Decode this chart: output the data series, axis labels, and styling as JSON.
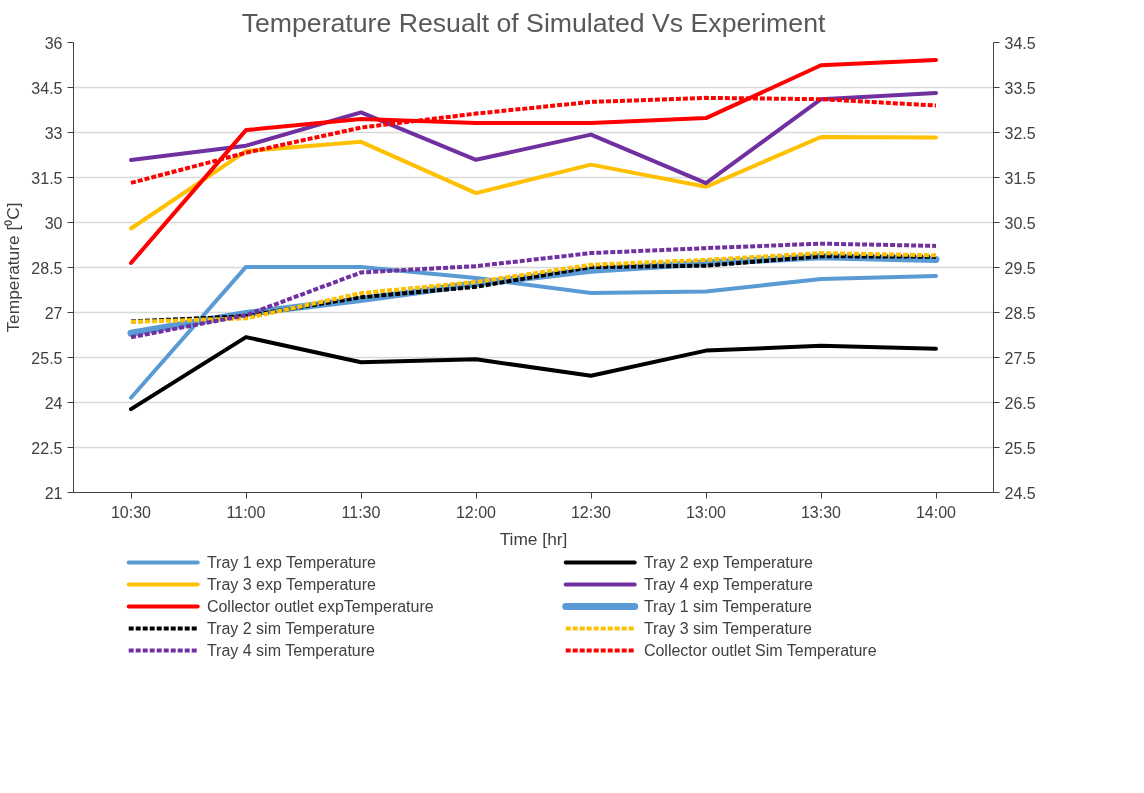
{
  "chart_data": {
    "type": "line",
    "title": "Temperature Resualt of Simulated Vs Experiment",
    "xlabel": "Time [hr]",
    "ylabel": "Temperature [⁰C]",
    "categories": [
      "10:30",
      "11:00",
      "11:30",
      "12:00",
      "12:30",
      "13:00",
      "13:30",
      "14:00"
    ],
    "ylim": [
      21,
      36
    ],
    "yticks": [
      21,
      22.5,
      24,
      25.5,
      27,
      28.5,
      30,
      31.5,
      33,
      34.5,
      36
    ],
    "y2lim": [
      24.5,
      34.5
    ],
    "y2ticks": [
      24.5,
      25.5,
      26.5,
      27.5,
      28.5,
      29.5,
      30.5,
      31.5,
      32.5,
      33.5,
      34.5
    ],
    "grid": "y",
    "legend": "bottom",
    "marker": "none",
    "series": [
      {
        "name": "Tray 1 exp Temperature",
        "color": "#5b9bd5",
        "line_style": "solid",
        "values": [
          24.16,
          28.52,
          28.52,
          28.15,
          27.65,
          27.7,
          28.12,
          28.22
        ]
      },
      {
        "name": "Tray 2 exp Temperature",
        "color": "#000000",
        "line_style": "solid",
        "values": [
          23.78,
          26.18,
          25.34,
          25.44,
          24.89,
          25.73,
          25.89,
          25.79
        ]
      },
      {
        "name": "Tray 3 exp Temperature",
        "color": "#ffc000",
        "line_style": "solid",
        "values": [
          29.8,
          32.38,
          32.69,
          30.98,
          31.93,
          31.19,
          32.85,
          32.83
        ]
      },
      {
        "name": "Tray 4 exp Temperature",
        "color": "#7030a0",
        "line_style": "solid",
        "values": [
          32.08,
          32.56,
          33.67,
          32.09,
          32.93,
          31.31,
          34.11,
          34.32
        ]
      },
      {
        "name": "Collector outlet expTemperature",
        "color": "#ff0000",
        "line_style": "solid",
        "values": [
          28.65,
          33.08,
          33.45,
          33.32,
          33.32,
          33.48,
          35.24,
          35.42
        ]
      },
      {
        "name": "Tray 1 sim Temperature",
        "color": "#5b9bd5",
        "line_style": "solid",
        "axis": "y2",
        "values": [
          28.04,
          28.48,
          28.79,
          29.14,
          29.44,
          29.6,
          29.74,
          29.68
        ]
      },
      {
        "name": "Tray 2 sim Temperature",
        "color": "#000000",
        "line_style": "dashed",
        "axis": "y2",
        "values": [
          28.3,
          28.42,
          28.84,
          29.07,
          29.51,
          29.54,
          29.75,
          29.74
        ]
      },
      {
        "name": "Tray 3 sim Temperature",
        "color": "#ffc000",
        "line_style": "dashed",
        "axis": "y2",
        "values": [
          28.29,
          28.37,
          28.93,
          29.18,
          29.56,
          29.67,
          29.82,
          29.77
        ]
      },
      {
        "name": "Tray 4 sim Temperature",
        "color": "#7030a0",
        "line_style": "dashed",
        "axis": "y2",
        "values": [
          27.95,
          28.44,
          29.39,
          29.53,
          29.82,
          29.93,
          30.03,
          29.98
        ]
      },
      {
        "name": "Collector outlet   Sim Temperature",
        "color": "#ff0000",
        "line_style": "dashed",
        "axis": "y2",
        "values": [
          31.38,
          32.05,
          32.61,
          32.92,
          33.18,
          33.27,
          33.24,
          33.1
        ]
      }
    ]
  }
}
